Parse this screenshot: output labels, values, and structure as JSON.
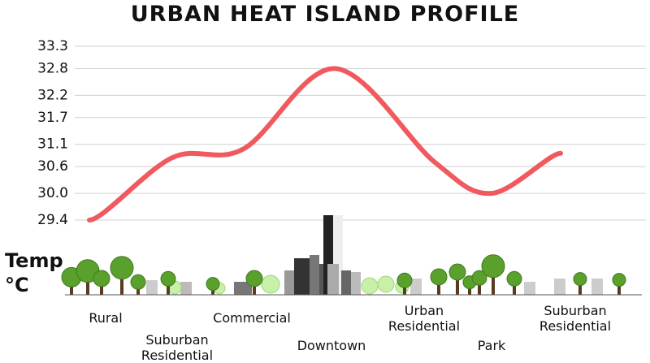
{
  "chart_data": {
    "type": "line",
    "title": "URBAN HEAT ISLAND PROFILE",
    "y_label": "Temp °C",
    "categories": [
      "Rural",
      "Suburban Residential",
      "Commercial",
      "Downtown",
      "Urban Residential",
      "Park",
      "Suburban Residential"
    ],
    "series": [
      {
        "name": "Temperature",
        "color": "#f05a5f",
        "values": [
          29.4,
          30.8,
          31.0,
          32.8,
          30.7,
          30.0,
          30.9
        ]
      }
    ],
    "ylim": [
      29.4,
      33.3
    ],
    "yticks": [
      29.4,
      {
        "value": 30,
        "label": "30.0"
      },
      30.6,
      31.1,
      31.7,
      32.2,
      32.8,
      33.3
    ],
    "grid": true
  }
}
